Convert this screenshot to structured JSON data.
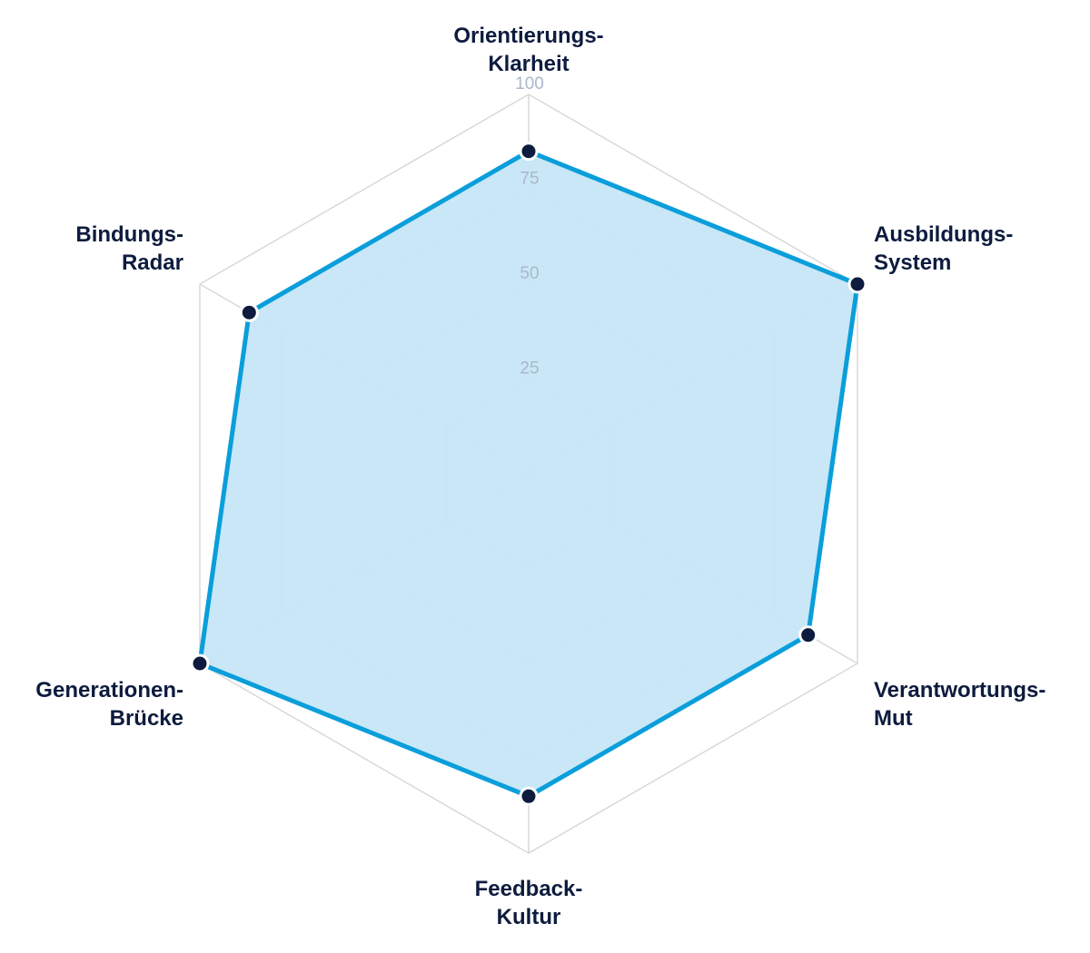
{
  "chart_data": {
    "type": "radar",
    "axes": [
      {
        "label_lines": [
          "Orientierungs-",
          "Klarheit"
        ]
      },
      {
        "label_lines": [
          "Ausbildungs-",
          "System"
        ]
      },
      {
        "label_lines": [
          "Verantwortungs-",
          "Mut"
        ]
      },
      {
        "label_lines": [
          "Feedback-",
          "Kultur"
        ]
      },
      {
        "label_lines": [
          "Generationen-",
          "Brücke"
        ]
      },
      {
        "label_lines": [
          "Bindungs-",
          "Radar"
        ]
      }
    ],
    "series": [
      {
        "values": [
          85,
          100,
          85,
          85,
          100,
          85
        ]
      }
    ],
    "r_range": [
      0,
      100
    ],
    "ticks": [
      "25",
      "50",
      "75",
      "100"
    ],
    "grid": true,
    "colors": {
      "line": "#0a9edb",
      "fill": "#c6e6f5",
      "point": "#0d1b3e",
      "point_stroke": "#ffffff",
      "grid": "#d9d9d9",
      "tick_text": "#aab8cc",
      "label_text": "#0d1b3e"
    }
  }
}
